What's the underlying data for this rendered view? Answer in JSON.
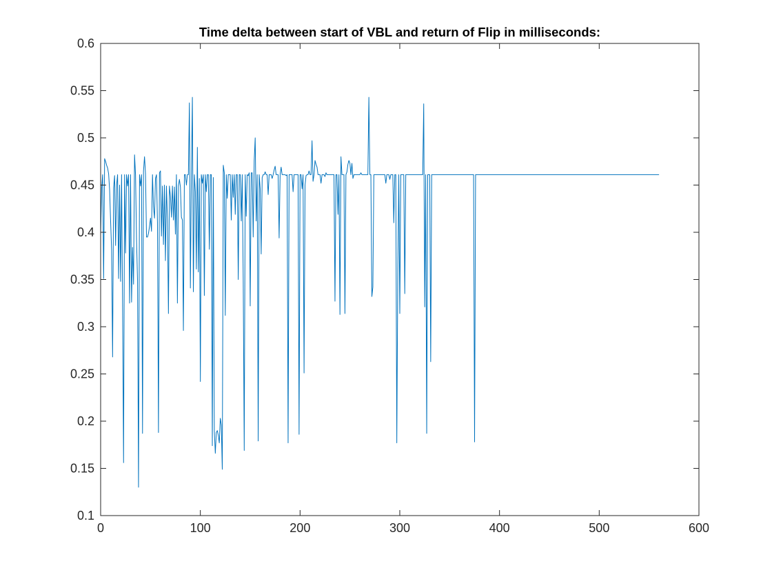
{
  "chart_data": {
    "type": "line",
    "title": "Time delta between start of VBL and return of Flip in milliseconds:",
    "xlabel": "",
    "ylabel": "",
    "xlim": [
      0,
      600
    ],
    "ylim": [
      0.1,
      0.6
    ],
    "xticks": [
      0,
      100,
      200,
      300,
      400,
      500,
      600
    ],
    "xtick_labels": [
      "0",
      "100",
      "200",
      "300",
      "400",
      "500",
      "600"
    ],
    "yticks": [
      0.1,
      0.15,
      0.2,
      0.25,
      0.3,
      0.35,
      0.4,
      0.45,
      0.5,
      0.55,
      0.6
    ],
    "ytick_labels": [
      "0.1",
      "0.15",
      "0.2",
      "0.25",
      "0.3",
      "0.35",
      "0.4",
      "0.45",
      "0.5",
      "0.55",
      "0.6"
    ],
    "grid": false,
    "legend": "none",
    "series": [
      {
        "color": "#0072BD",
        "x_start": 0,
        "x_step": 1,
        "values": [
          0.397,
          0.447,
          0.461,
          0.351,
          0.478,
          0.475,
          0.471,
          0.468,
          0.462,
          0.445,
          0.412,
          0.381,
          0.268,
          0.447,
          0.46,
          0.386,
          0.45,
          0.461,
          0.351,
          0.45,
          0.348,
          0.461,
          0.324,
          0.156,
          0.461,
          0.378,
          0.461,
          0.449,
          0.461,
          0.325,
          0.461,
          0.326,
          0.384,
          0.345,
          0.482,
          0.461,
          0.392,
          0.349,
          0.13,
          0.461,
          0.449,
          0.461,
          0.187,
          0.465,
          0.48,
          0.462,
          0.395,
          0.395,
          0.399,
          0.406,
          0.415,
          0.401,
          0.461,
          0.427,
          0.415,
          0.457,
          0.461,
          0.41,
          0.188,
          0.463,
          0.465,
          0.396,
          0.449,
          0.387,
          0.45,
          0.37,
          0.449,
          0.413,
          0.314,
          0.449,
          0.438,
          0.416,
          0.449,
          0.413,
          0.448,
          0.398,
          0.461,
          0.325,
          0.449,
          0.456,
          0.448,
          0.416,
          0.413,
          0.296,
          0.461,
          0.461,
          0.45,
          0.461,
          0.461,
          0.537,
          0.341,
          0.461,
          0.543,
          0.337,
          0.461,
          0.443,
          0.361,
          0.49,
          0.358,
          0.457,
          0.242,
          0.461,
          0.452,
          0.461,
          0.333,
          0.461,
          0.443,
          0.461,
          0.461,
          0.382,
          0.461,
          0.461,
          0.174,
          0.458,
          0.19,
          0.166,
          0.188,
          0.19,
          0.185,
          0.177,
          0.203,
          0.196,
          0.149,
          0.471,
          0.463,
          0.312,
          0.461,
          0.436,
          0.461,
          0.461,
          0.461,
          0.413,
          0.461,
          0.437,
          0.461,
          0.419,
          0.461,
          0.461,
          0.35,
          0.461,
          0.461,
          0.412,
          0.461,
          0.349,
          0.169,
          0.461,
          0.417,
          0.461,
          0.46,
          0.463,
          0.322,
          0.463,
          0.463,
          0.395,
          0.476,
          0.5,
          0.412,
          0.461,
          0.179,
          0.461,
          0.446,
          0.377,
          0.458,
          0.461,
          0.461,
          0.464,
          0.461,
          0.461,
          0.44,
          0.461,
          0.461,
          0.461,
          0.457,
          0.461,
          0.466,
          0.47,
          0.461,
          0.461,
          0.461,
          0.394,
          0.461,
          0.469,
          0.461,
          0.461,
          0.461,
          0.461,
          0.46,
          0.461,
          0.177,
          0.461,
          0.461,
          0.461,
          0.461,
          0.443,
          0.461,
          0.461,
          0.461,
          0.461,
          0.461,
          0.186,
          0.461,
          0.461,
          0.446,
          0.461,
          0.251,
          0.45,
          0.46,
          0.461,
          0.461,
          0.465,
          0.461,
          0.461,
          0.497,
          0.454,
          0.461,
          0.476,
          0.472,
          0.469,
          0.461,
          0.461,
          0.461,
          0.452,
          0.461,
          0.461,
          0.461,
          0.459,
          0.463,
          0.461,
          0.461,
          0.461,
          0.461,
          0.461,
          0.461,
          0.461,
          0.461,
          0.327,
          0.461,
          0.461,
          0.419,
          0.461,
          0.313,
          0.48,
          0.461,
          0.461,
          0.461,
          0.314,
          0.461,
          0.464,
          0.472,
          0.476,
          0.473,
          0.461,
          0.473,
          0.457,
          0.461,
          0.461,
          0.461,
          0.461,
          0.461,
          0.461,
          0.461,
          0.463,
          0.461,
          0.461,
          0.461,
          0.461,
          0.461,
          0.461,
          0.461,
          0.543,
          0.461,
          0.461,
          0.332,
          0.342,
          0.461,
          0.461,
          0.461,
          0.461,
          0.461,
          0.461,
          0.461,
          0.461,
          0.461,
          0.461,
          0.461,
          0.461,
          0.452,
          0.461,
          0.461,
          0.461,
          0.456,
          0.461,
          0.461,
          0.461,
          0.41,
          0.461,
          0.461,
          0.177,
          0.357,
          0.461,
          0.314,
          0.461,
          0.461,
          0.461,
          0.461,
          0.335,
          0.461,
          0.461,
          0.461,
          0.461,
          0.461,
          0.461,
          0.461,
          0.461,
          0.461,
          0.461,
          0.461,
          0.461,
          0.461,
          0.461,
          0.461,
          0.461,
          0.461,
          0.461,
          0.536,
          0.321,
          0.461,
          0.187,
          0.461,
          0.461,
          0.461,
          0.263,
          0.461,
          0.461,
          0.461,
          0.461,
          0.461,
          0.461,
          0.461,
          0.461,
          0.461,
          0.461,
          0.461,
          0.461,
          0.461,
          0.461,
          0.461,
          0.461,
          0.461,
          0.461,
          0.461,
          0.461,
          0.461,
          0.461,
          0.461,
          0.461,
          0.461,
          0.461,
          0.461,
          0.461,
          0.461,
          0.461,
          0.461,
          0.461,
          0.461,
          0.461,
          0.461,
          0.461,
          0.461,
          0.461,
          0.461,
          0.461,
          0.461,
          0.461,
          0.461,
          0.178,
          0.461,
          0.461,
          0.461,
          0.461,
          0.461,
          0.461,
          0.461,
          0.461,
          0.461,
          0.461,
          0.461,
          0.461,
          0.461,
          0.461,
          0.461,
          0.461,
          0.461,
          0.461,
          0.461,
          0.461,
          0.461,
          0.461,
          0.461,
          0.461,
          0.461,
          0.461,
          0.461,
          0.461,
          0.461,
          0.461,
          0.461,
          0.461,
          0.461,
          0.461,
          0.461,
          0.461,
          0.461,
          0.461,
          0.461,
          0.461,
          0.461,
          0.461,
          0.461,
          0.461,
          0.461,
          0.461,
          0.461,
          0.461,
          0.461,
          0.461,
          0.461,
          0.461,
          0.461,
          0.461,
          0.461,
          0.461,
          0.461,
          0.461,
          0.461,
          0.461,
          0.461,
          0.461,
          0.461,
          0.461,
          0.461,
          0.461,
          0.461,
          0.461,
          0.461,
          0.461,
          0.461,
          0.461,
          0.461,
          0.461,
          0.461,
          0.461,
          0.461,
          0.461,
          0.461,
          0.461,
          0.461,
          0.461,
          0.461,
          0.461,
          0.461,
          0.461,
          0.461,
          0.461,
          0.461,
          0.461,
          0.461,
          0.461,
          0.461,
          0.461,
          0.461,
          0.461,
          0.461,
          0.461,
          0.461,
          0.461,
          0.461,
          0.461,
          0.461,
          0.461,
          0.461,
          0.461,
          0.461,
          0.461,
          0.461,
          0.461,
          0.461,
          0.461,
          0.461,
          0.461,
          0.461,
          0.461,
          0.461,
          0.461,
          0.461,
          0.461,
          0.461,
          0.461,
          0.461,
          0.461,
          0.461,
          0.461,
          0.461,
          0.461,
          0.461,
          0.461,
          0.461,
          0.461,
          0.461,
          0.461,
          0.461,
          0.461,
          0.461,
          0.461,
          0.461,
          0.461,
          0.461,
          0.461,
          0.461,
          0.461,
          0.461,
          0.461,
          0.461,
          0.461,
          0.461,
          0.461,
          0.461,
          0.461,
          0.461,
          0.461,
          0.461,
          0.461,
          0.461,
          0.461,
          0.461,
          0.461,
          0.461,
          0.461,
          0.461,
          0.461,
          0.461,
          0.461,
          0.461,
          0.461,
          0.461,
          0.461,
          0.461,
          0.461,
          0.461,
          0.461,
          0.461,
          0.461,
          0.461,
          0.461,
          0.461,
          0.461,
          0.461,
          0.461,
          0.461,
          0.461,
          0.461
        ]
      }
    ]
  }
}
